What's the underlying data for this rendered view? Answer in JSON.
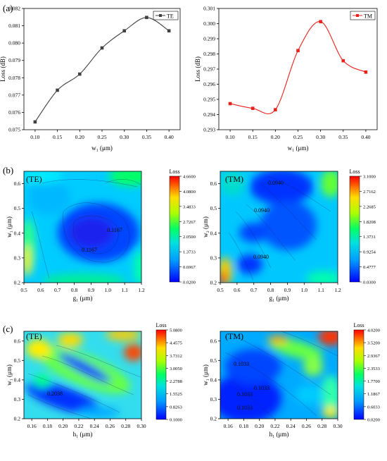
{
  "chart_data": [
    {
      "id": "a-te",
      "type": "line",
      "panel_label": "(a)",
      "xlabel": "w₁ (μm)",
      "ylabel": "Loss (dB)",
      "xlim": [
        0.075,
        0.425
      ],
      "ylim": [
        0.075,
        0.082
      ],
      "x_ticks": [
        "0.10",
        "0.15",
        "0.20",
        "0.25",
        "0.30",
        "0.35",
        "0.40"
      ],
      "y_ticks": [
        "0.075",
        "0.076",
        "0.077",
        "0.078",
        "0.079",
        "0.080",
        "0.081",
        "0.082"
      ],
      "series": [
        {
          "name": "TE",
          "color": "#404040",
          "marker": "square",
          "x": [
            0.1,
            0.15,
            0.2,
            0.25,
            0.3,
            0.35,
            0.4
          ],
          "y": [
            0.07545,
            0.07728,
            0.07821,
            0.07972,
            0.08071,
            0.08148,
            0.08071
          ]
        }
      ],
      "legend": "top-right",
      "grid": false
    },
    {
      "id": "a-tm",
      "type": "line",
      "xlabel": "w₁ (μm)",
      "ylabel": "Loss (dB)",
      "xlim": [
        0.075,
        0.425
      ],
      "ylim": [
        0.293,
        0.301
      ],
      "x_ticks": [
        "0.10",
        "0.15",
        "0.20",
        "0.25",
        "0.30",
        "0.35",
        "0.40"
      ],
      "y_ticks": [
        "0.293",
        "0.294",
        "0.295",
        "0.296",
        "0.297",
        "0.298",
        "0.299",
        "0.300",
        "0.301"
      ],
      "series": [
        {
          "name": "TM",
          "color": "#e8211b",
          "marker": "square",
          "x": [
            0.1,
            0.15,
            0.2,
            0.25,
            0.3,
            0.35,
            0.4
          ],
          "y": [
            0.29472,
            0.29441,
            0.29432,
            0.29822,
            0.30013,
            0.29755,
            0.2968
          ]
        }
      ],
      "legend": "top-right",
      "grid": false
    },
    {
      "id": "b-te",
      "type": "heatmap",
      "panel_label": "(b)",
      "inner_label": "(TE)",
      "xlabel": "g₁ (μm)",
      "ylabel": "w₁ (μm)",
      "xlim": [
        0.5,
        1.2
      ],
      "ylim": [
        0.2,
        0.65
      ],
      "x_ticks": [
        "0.5",
        "0.6",
        "0.7",
        "0.8",
        "0.9",
        "1.0",
        "1.1",
        "1.2"
      ],
      "y_ticks": [
        "0.2",
        "0.3",
        "0.4",
        "0.5",
        "0.6"
      ],
      "colorbar": {
        "title": "Loss",
        "range": [
          0.02,
          4.66
        ],
        "ticks": [
          "4.6600",
          "4.0800",
          "3.4833",
          "2.7267",
          "2.0500",
          "1.3733",
          "0.6967",
          "0.0200"
        ]
      },
      "contour_labels": [
        "0.1167",
        "0.1167"
      ]
    },
    {
      "id": "b-tm",
      "type": "heatmap",
      "inner_label": "(TM)",
      "xlabel": "g₁ (μm)",
      "ylabel": "w₂ (μm)",
      "xlim": [
        0.5,
        1.2
      ],
      "ylim": [
        0.2,
        0.65
      ],
      "x_ticks": [
        "0.5",
        "0.6",
        "0.7",
        "0.8",
        "0.9",
        "1.0",
        "1.1",
        "1.2"
      ],
      "y_ticks": [
        "0.2",
        "0.3",
        "0.4",
        "0.5",
        "0.6"
      ],
      "colorbar": {
        "title": "Loss",
        "range": [
          0.03,
          3.1
        ],
        "ticks": [
          "3.1000",
          "2.7162",
          "2.2685",
          "1.8208",
          "1.3731",
          "0.9254",
          "0.4777",
          "0.0300"
        ]
      },
      "contour_labels": [
        "0.0940",
        "0.0940",
        "0.0940"
      ]
    },
    {
      "id": "c-te",
      "type": "heatmap",
      "panel_label": "(c)",
      "inner_label": "(TE)",
      "xlabel": "h₁ (μm)",
      "ylabel": "w₁ (μm)",
      "xlim": [
        0.15,
        0.3
      ],
      "ylim": [
        0.2,
        0.65
      ],
      "x_ticks": [
        "0.16",
        "0.18",
        "0.20",
        "0.22",
        "0.24",
        "0.26",
        "0.28",
        "0.30"
      ],
      "y_ticks": [
        "0.2",
        "0.3",
        "0.4",
        "0.5",
        "0.6"
      ],
      "colorbar": {
        "title": "Loss",
        "range": [
          0.1,
          5.08
        ],
        "ticks": [
          "5.0800",
          "4.4575",
          "3.7312",
          "3.0050",
          "2.2788",
          "1.5525",
          "0.8263",
          "0.1000"
        ]
      },
      "contour_labels": [
        "0.2038"
      ]
    },
    {
      "id": "c-tm",
      "type": "heatmap",
      "inner_label": "(TM)",
      "xlabel": "h₁ (μm)",
      "ylabel": "w₁ (μm)",
      "xlim": [
        0.15,
        0.3
      ],
      "ylim": [
        0.2,
        0.65
      ],
      "x_ticks": [
        "0.16",
        "0.18",
        "0.20",
        "0.22",
        "0.24",
        "0.26",
        "0.28",
        "0.30"
      ],
      "y_ticks": [
        "0.2",
        "0.3",
        "0.4",
        "0.5",
        "0.6"
      ],
      "colorbar": {
        "title": "Loss",
        "range": [
          0.02,
          4.02
        ],
        "ticks": [
          "4.0200",
          "3.5200",
          "2.9367",
          "2.3533",
          "1.7700",
          "1.1867",
          "0.6033",
          "0.0200"
        ]
      },
      "contour_labels": [
        "0.1033",
        "0.1033",
        "0.1033",
        "0.1033"
      ]
    }
  ]
}
